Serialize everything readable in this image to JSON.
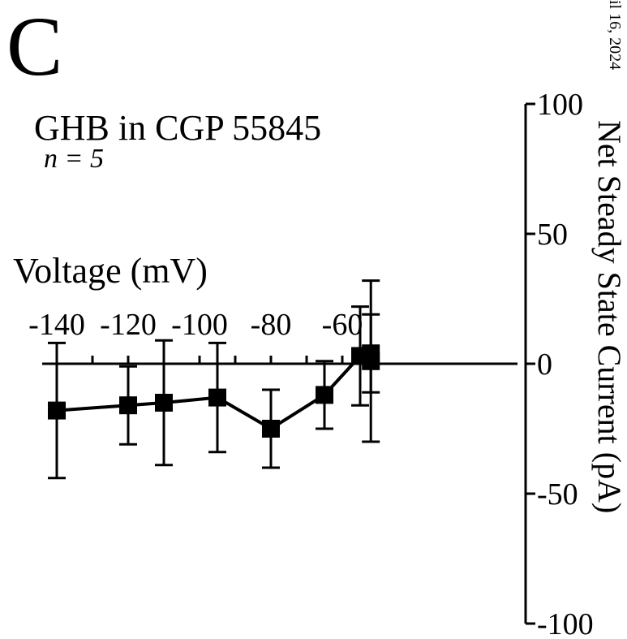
{
  "panel_label": "C",
  "side_text": "il 16, 2024",
  "chart_data": {
    "type": "line",
    "title": "GHB in CGP 55845",
    "subtitle": "n = 5",
    "xlabel": "Voltage (mV)",
    "ylabel": "Net Steady State Current (pA)",
    "xlim": [
      -140,
      -52
    ],
    "ylim": [
      -100,
      100
    ],
    "x_ticks": [
      -140,
      -120,
      -100,
      -80,
      -60
    ],
    "y_ticks": [
      100,
      50,
      0,
      -50,
      -100
    ],
    "x_tick_labels": [
      "-140",
      "-120",
      "-100",
      "-80",
      "-60"
    ],
    "y_tick_labels": [
      "100",
      "50",
      "0",
      "-50",
      "-100"
    ],
    "grid": false,
    "legend": "none",
    "color": "#000000",
    "series": [
      {
        "x": [
          -140,
          -120,
          -110,
          -95,
          -80,
          -65,
          -55,
          -52,
          -52
        ],
        "y": [
          -18,
          -16,
          -15,
          -13,
          -25,
          -12,
          3,
          4,
          1
        ],
        "error": [
          26,
          15,
          24,
          21,
          15,
          13,
          19,
          15,
          31
        ]
      }
    ]
  }
}
